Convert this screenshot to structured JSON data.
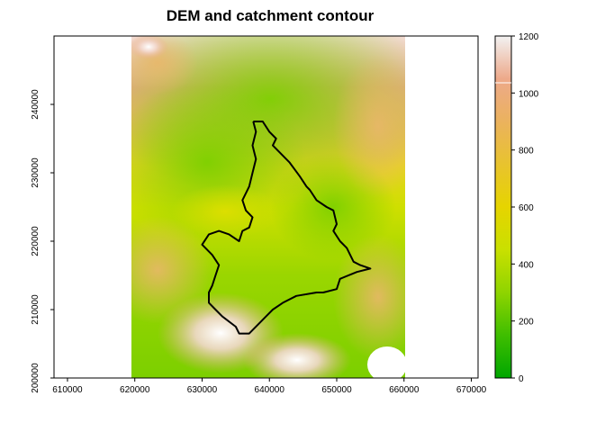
{
  "title": "DEM and catchment contour",
  "map": {
    "x_ticks": [
      "610000",
      "620000",
      "630000",
      "640000",
      "650000",
      "660000",
      "670000"
    ],
    "y_ticks": [
      "200000",
      "210000",
      "220000",
      "230000",
      "240000"
    ],
    "x_range": [
      608000,
      671000
    ],
    "y_range": [
      200000,
      250000
    ],
    "raster_extent": {
      "xmin": 620000,
      "xmax": 660000,
      "ymin": 200000,
      "ymax": 250000
    }
  },
  "legend": {
    "ticks": [
      "0",
      "200",
      "400",
      "600",
      "800",
      "1000",
      "1200"
    ],
    "range": [
      0,
      1200
    ],
    "colors": [
      "#00a600",
      "#3fbe00",
      "#8fd400",
      "#e6e600",
      "#e8c32e",
      "#ebb25e",
      "#eda98a",
      "#f0c2b8",
      "#f2f2f2"
    ]
  },
  "catchment": {
    "outline_color": "#000000",
    "outline": [
      [
        637600,
        237500
      ],
      [
        639000,
        237500
      ],
      [
        640000,
        236000
      ],
      [
        641000,
        235000
      ],
      [
        640500,
        234000
      ],
      [
        643000,
        231500
      ],
      [
        644500,
        229500
      ],
      [
        645500,
        228000
      ],
      [
        646000,
        227500
      ],
      [
        647000,
        226000
      ],
      [
        648500,
        225000
      ],
      [
        649500,
        224500
      ],
      [
        650000,
        222500
      ],
      [
        649500,
        221500
      ],
      [
        650500,
        220000
      ],
      [
        651500,
        219000
      ],
      [
        652500,
        217000
      ],
      [
        653500,
        216500
      ],
      [
        655000,
        216000
      ],
      [
        653000,
        215500
      ],
      [
        650500,
        214500
      ],
      [
        650000,
        213000
      ],
      [
        648000,
        212500
      ],
      [
        647000,
        212500
      ],
      [
        644000,
        212000
      ],
      [
        642000,
        211000
      ],
      [
        640500,
        210000
      ],
      [
        639500,
        209000
      ],
      [
        638500,
        208000
      ],
      [
        637000,
        206500
      ],
      [
        635500,
        206500
      ],
      [
        635000,
        207500
      ],
      [
        633000,
        209000
      ],
      [
        632000,
        210000
      ],
      [
        631000,
        211000
      ],
      [
        631000,
        212500
      ],
      [
        631500,
        213500
      ],
      [
        632000,
        215000
      ],
      [
        632500,
        216500
      ],
      [
        631500,
        218000
      ],
      [
        630000,
        219500
      ],
      [
        631000,
        221000
      ],
      [
        632500,
        221500
      ],
      [
        634000,
        221000
      ],
      [
        635500,
        220000
      ],
      [
        636000,
        221500
      ],
      [
        637000,
        222000
      ],
      [
        637500,
        223500
      ],
      [
        636500,
        224500
      ],
      [
        636000,
        226000
      ],
      [
        637000,
        228000
      ],
      [
        637500,
        230000
      ],
      [
        638000,
        232000
      ],
      [
        637500,
        234000
      ],
      [
        638000,
        236000
      ],
      [
        637600,
        237500
      ]
    ]
  }
}
